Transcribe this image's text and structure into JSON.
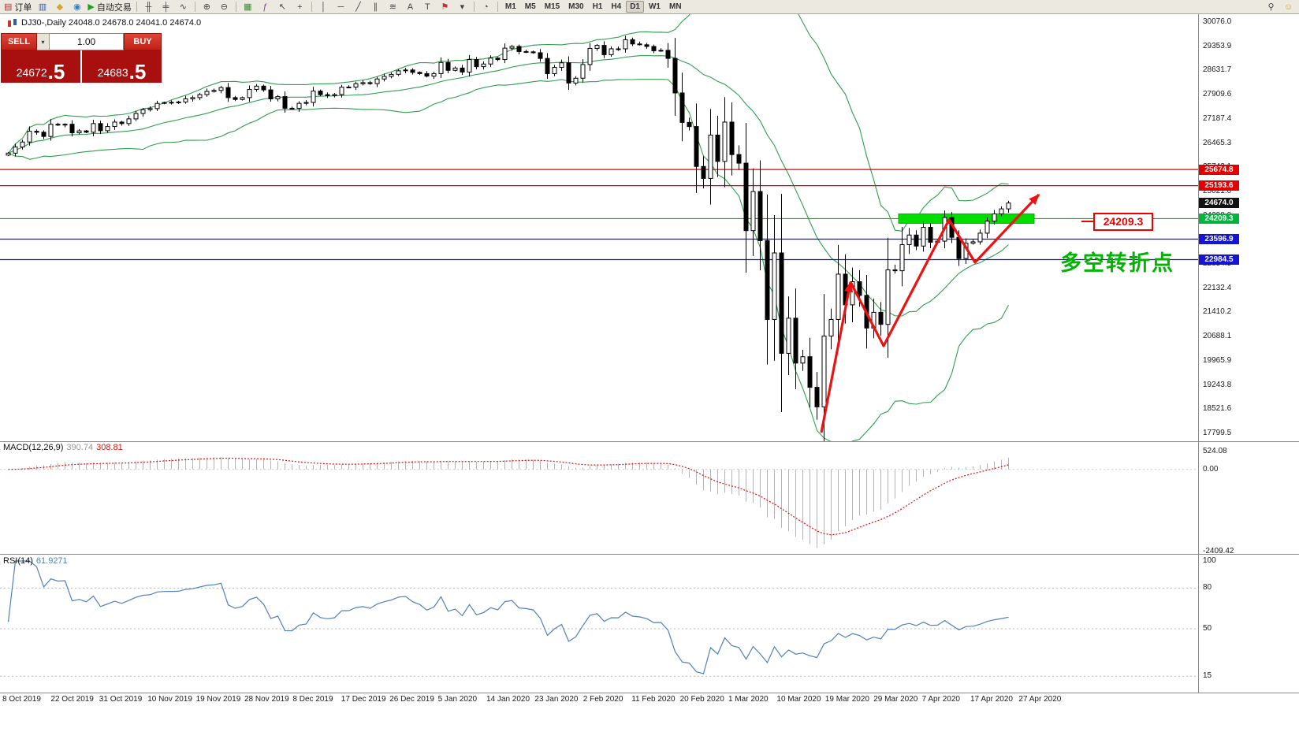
{
  "toolbar": {
    "items": [
      {
        "type": "button",
        "name": "new-order-button",
        "glyph": "▤",
        "glyph_color": "#b0342c",
        "label": "订单"
      },
      {
        "type": "button",
        "name": "profiles-icon",
        "glyph": "▥",
        "glyph_color": "#3a62a8"
      },
      {
        "type": "button",
        "name": "alerts-icon",
        "glyph": "◆",
        "glyph_color": "#d2a62c"
      },
      {
        "type": "button",
        "name": "help-icon",
        "glyph": "◉",
        "glyph_color": "#2c7fd2"
      },
      {
        "type": "button",
        "name": "autotrading-button",
        "glyph": "▶",
        "glyph_color": "#1fa31f",
        "label": "自动交易"
      },
      {
        "type": "sep"
      },
      {
        "type": "button",
        "name": "bar-chart-icon",
        "glyph": "╫",
        "glyph_color": "#444444"
      },
      {
        "type": "button",
        "name": "candlestick-chart-icon",
        "glyph": "╪",
        "glyph_color": "#444444"
      },
      {
        "type": "button",
        "name": "line-chart-icon",
        "glyph": "∿",
        "glyph_color": "#444444"
      },
      {
        "type": "sep"
      },
      {
        "type": "button",
        "name": "zoom-in-icon",
        "glyph": "⊕",
        "glyph_color": "#444444"
      },
      {
        "type": "button",
        "name": "zoom-out-icon",
        "glyph": "⊖",
        "glyph_color": "#444444"
      },
      {
        "type": "sep"
      },
      {
        "type": "button",
        "name": "tile-windows-icon",
        "glyph": "▦",
        "glyph_color": "#3a8a3a"
      },
      {
        "type": "button",
        "name": "indicators-icon",
        "glyph": "ƒ",
        "glyph_color": "#7a4aa0"
      },
      {
        "type": "button",
        "name": "cursor-icon",
        "glyph": "↖",
        "glyph_color": "#444444"
      },
      {
        "type": "button",
        "name": "crosshair-icon",
        "glyph": "+",
        "glyph_color": "#444444"
      },
      {
        "type": "sep"
      },
      {
        "type": "button",
        "name": "vertical-line-icon",
        "glyph": "│",
        "glyph_color": "#444444"
      },
      {
        "type": "button",
        "name": "horizontal-line-icon",
        "glyph": "─",
        "glyph_color": "#444444"
      },
      {
        "type": "button",
        "name": "trendline-icon",
        "glyph": "╱",
        "glyph_color": "#444444"
      },
      {
        "type": "button",
        "name": "channel-icon",
        "glyph": "∥",
        "glyph_color": "#444444"
      },
      {
        "type": "button",
        "name": "fibonacci-icon",
        "glyph": "≋",
        "glyph_color": "#444444"
      },
      {
        "type": "button",
        "name": "text-icon",
        "glyph": "A",
        "glyph_color": "#444444"
      },
      {
        "type": "button",
        "name": "text-label-icon",
        "glyph": "T",
        "glyph_color": "#444444"
      },
      {
        "type": "button",
        "name": "arrows-icon",
        "glyph": "⚑",
        "glyph_color": "#b03a3a"
      },
      {
        "type": "button",
        "name": "objects-dropdown-icon",
        "glyph": "▾",
        "glyph_color": "#444444"
      },
      {
        "type": "sep"
      },
      {
        "type": "button",
        "name": "period-icon",
        "glyph": "◔",
        "glyph_color": "#444444"
      },
      {
        "type": "sep"
      },
      {
        "type": "tf",
        "name": "timeframe-m1",
        "label": "M1"
      },
      {
        "type": "tf",
        "name": "timeframe-m5",
        "label": "M5"
      },
      {
        "type": "tf",
        "name": "timeframe-m15",
        "label": "M15"
      },
      {
        "type": "tf",
        "name": "timeframe-m30",
        "label": "M30"
      },
      {
        "type": "tf",
        "name": "timeframe-h1",
        "label": "H1"
      },
      {
        "type": "tf",
        "name": "timeframe-h4",
        "label": "H4"
      },
      {
        "type": "tf",
        "name": "timeframe-d1",
        "label": "D1",
        "active": true
      },
      {
        "type": "tf",
        "name": "timeframe-w1",
        "label": "W1"
      },
      {
        "type": "tf",
        "name": "timeframe-mn",
        "label": "MN"
      },
      {
        "type": "spacer"
      },
      {
        "type": "button",
        "name": "search-icon",
        "glyph": "⚲",
        "glyph_color": "#444444"
      },
      {
        "type": "button",
        "name": "community-icon",
        "glyph": "☺",
        "glyph_color": "#d2a62c"
      }
    ]
  },
  "chart": {
    "title": "DJ30-,Daily  24048.0 24678.0 24041.0 24674.0"
  },
  "trade_panel": {
    "sell_label": "SELL",
    "buy_label": "BUY",
    "volume_dd_glyph": "▾",
    "volume": "1.00",
    "sell_price_main": "24672",
    "sell_price_frac": ".5",
    "buy_price_main": "24683",
    "buy_price_frac": ".5"
  },
  "price_axis": {
    "ticks": [
      "30076.0",
      "29353.9",
      "28631.7",
      "27909.6",
      "27187.4",
      "26465.3",
      "25743.1",
      "25021.0",
      "24298.8",
      "23576.7",
      "22854.5",
      "22132.4",
      "21410.2",
      "20688.1",
      "19965.9",
      "19243.8",
      "18521.6",
      "17799.5"
    ]
  },
  "levels": [
    {
      "value": 25674.8,
      "label": "25674.8",
      "line": true,
      "line_color": "#e00000",
      "tag_color": "#e00000"
    },
    {
      "value": 25193.6,
      "label": "25193.6",
      "line": true,
      "line_color": "#e00000",
      "tag_color": "#e00000"
    },
    {
      "value": 24674.0,
      "label": "24674.0",
      "line": false,
      "line_color": "#111111",
      "tag_color": "#111111",
      "current": true
    },
    {
      "value": 24209.3,
      "label": "24209.3",
      "line": true,
      "line_color": "#00c000",
      "tag_color": "#00b43c"
    },
    {
      "value": 23596.9,
      "label": "23596.9",
      "line": true,
      "line_color": "#1414d2",
      "tag_color": "#1414d2"
    },
    {
      "value": 22984.5,
      "label": "22984.5",
      "line": true,
      "line_color": "#1414d2",
      "tag_color": "#1414d2"
    }
  ],
  "annotations": {
    "price_label": "24209.3",
    "turning_point_text": "多空转折点",
    "arrow_color": "#ee1111",
    "highlight_color": "#00dd00"
  },
  "macd_panel": {
    "title": "MACD(12,26,9)",
    "value_main": "390.74",
    "value_signal": "308.81",
    "axis": [
      {
        "text": "524.08",
        "value": 524.08
      },
      {
        "text": "0.00",
        "value": 0
      },
      {
        "text": "-2409.42",
        "value": -2409.42
      }
    ]
  },
  "rsi_panel": {
    "title": "RSI(14)",
    "value": "61.9271",
    "axis": [
      {
        "text": "100",
        "value": 100
      },
      {
        "text": "80",
        "value": 80
      },
      {
        "text": "50",
        "value": 50
      },
      {
        "text": "15",
        "value": 15
      }
    ],
    "level_lines": [
      80,
      50,
      15
    ]
  },
  "time_axis": [
    "8 Oct 2019",
    "22 Oct 2019",
    "31 Oct 2019",
    "10 Nov 2019",
    "19 Nov 2019",
    "28 Nov 2019",
    "8 Dec 2019",
    "17 Dec 2019",
    "26 Dec 2019",
    "5 Jan 2020",
    "14 Jan 2020",
    "23 Jan 2020",
    "2 Feb 2020",
    "11 Feb 2020",
    "20 Feb 2020",
    "1 Mar 2020",
    "10 Mar 2020",
    "19 Mar 2020",
    "29 Mar 2020",
    "7 Apr 2020",
    "17 Apr 2020",
    "27 Apr 2020"
  ],
  "chart_data": {
    "type": "candlestick",
    "symbol": "DJ30-",
    "timeframe": "Daily",
    "title": "DJ30-,Daily",
    "ohlc_current": {
      "open": 24048.0,
      "high": 24678.0,
      "low": 24041.0,
      "close": 24674.0
    },
    "price_range": [
      17799.5,
      30076.0
    ],
    "x_range": [
      "8 Oct 2019",
      "27 Apr 2020"
    ],
    "indicators": {
      "bollinger": {
        "period": 20,
        "deviation": 2,
        "color": "#2f9e4f"
      },
      "macd": {
        "fast": 12,
        "slow": 26,
        "signal": 9,
        "current_main": 390.74,
        "current_signal": 308.81
      },
      "rsi": {
        "period": 14,
        "current": 61.9271
      }
    },
    "closes": [
      26164,
      26346,
      26496,
      26816,
      26787,
      26662,
      27025,
      27002,
      27026,
      26770,
      26828,
      26788,
      27046,
      26833,
      26958,
      27091,
      27046,
      27186,
      27347,
      27462,
      27493,
      27649,
      27675,
      27681,
      27691,
      27783,
      27821,
      27911,
      28005,
      28036,
      28121,
      27821,
      27766,
      27821,
      28066,
      28164,
      28051,
      27783,
      27850,
      27503,
      27502,
      27650,
      27677,
      28015,
      27909,
      27882,
      27912,
      28132,
      28135,
      28236,
      28267,
      28239,
      28377,
      28455,
      28515,
      28621,
      28645,
      28575,
      28538,
      28462,
      28538,
      28869,
      28635,
      28704,
      28584,
      28957,
      28745,
      28824,
      29001,
      28957,
      29297,
      29348,
      29196,
      29186,
      29160,
      28990,
      28536,
      28723,
      28859,
      28256,
      28400,
      28808,
      29290,
      29380,
      29103,
      29277,
      29276,
      29551,
      29423,
      29398,
      29348,
      29220,
      29232,
      28992,
      27960,
      27081,
      26957,
      25766,
      25409,
      26703,
      25917,
      27090,
      26121,
      25864,
      23851,
      25018,
      23553,
      21200,
      23185,
      20188,
      21237,
      19898,
      20087,
      19173,
      18591,
      20704,
      21200,
      22552,
      21636,
      22327,
      21917,
      20943,
      21413,
      21052,
      22679,
      22653,
      23433,
      23719,
      23390,
      23949,
      23504,
      23537,
      24242,
      23650,
      23018,
      23475,
      23515,
      23775,
      24133,
      24350,
      24500,
      24674
    ]
  }
}
